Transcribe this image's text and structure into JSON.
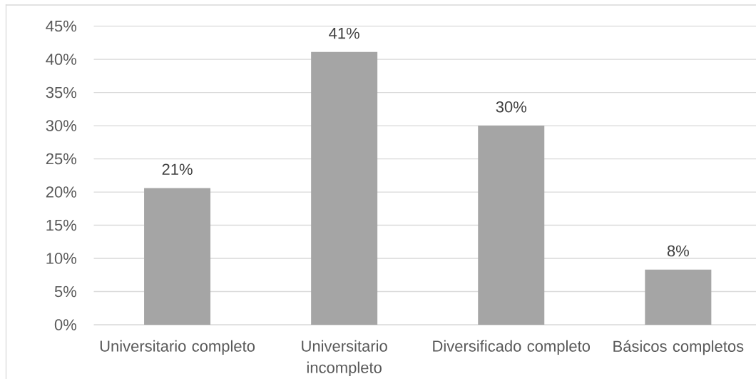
{
  "chart_data": {
    "type": "bar",
    "categories": [
      "Universitario completo",
      "Universitario incompleto",
      "Diversificado completo",
      "Básicos completos"
    ],
    "values": [
      20.6,
      41.1,
      30,
      8.3
    ],
    "color": "#a5a5a5",
    "value_labels": [
      "21%",
      "41%",
      "30%",
      "8%"
    ],
    "ylim": [
      0,
      45
    ],
    "yticks": [
      {
        "value": 0,
        "label": "0%"
      },
      {
        "value": 5,
        "label": "5%"
      },
      {
        "value": 10,
        "label": "10%"
      },
      {
        "value": 15,
        "label": "15%"
      },
      {
        "value": 20,
        "label": "20%"
      },
      {
        "value": 25,
        "label": "25%"
      },
      {
        "value": 30,
        "label": "30%"
      },
      {
        "value": 35,
        "label": "35%"
      },
      {
        "value": 40,
        "label": "40%"
      },
      {
        "value": 45,
        "label": "45%"
      }
    ],
    "grid": "y"
  }
}
